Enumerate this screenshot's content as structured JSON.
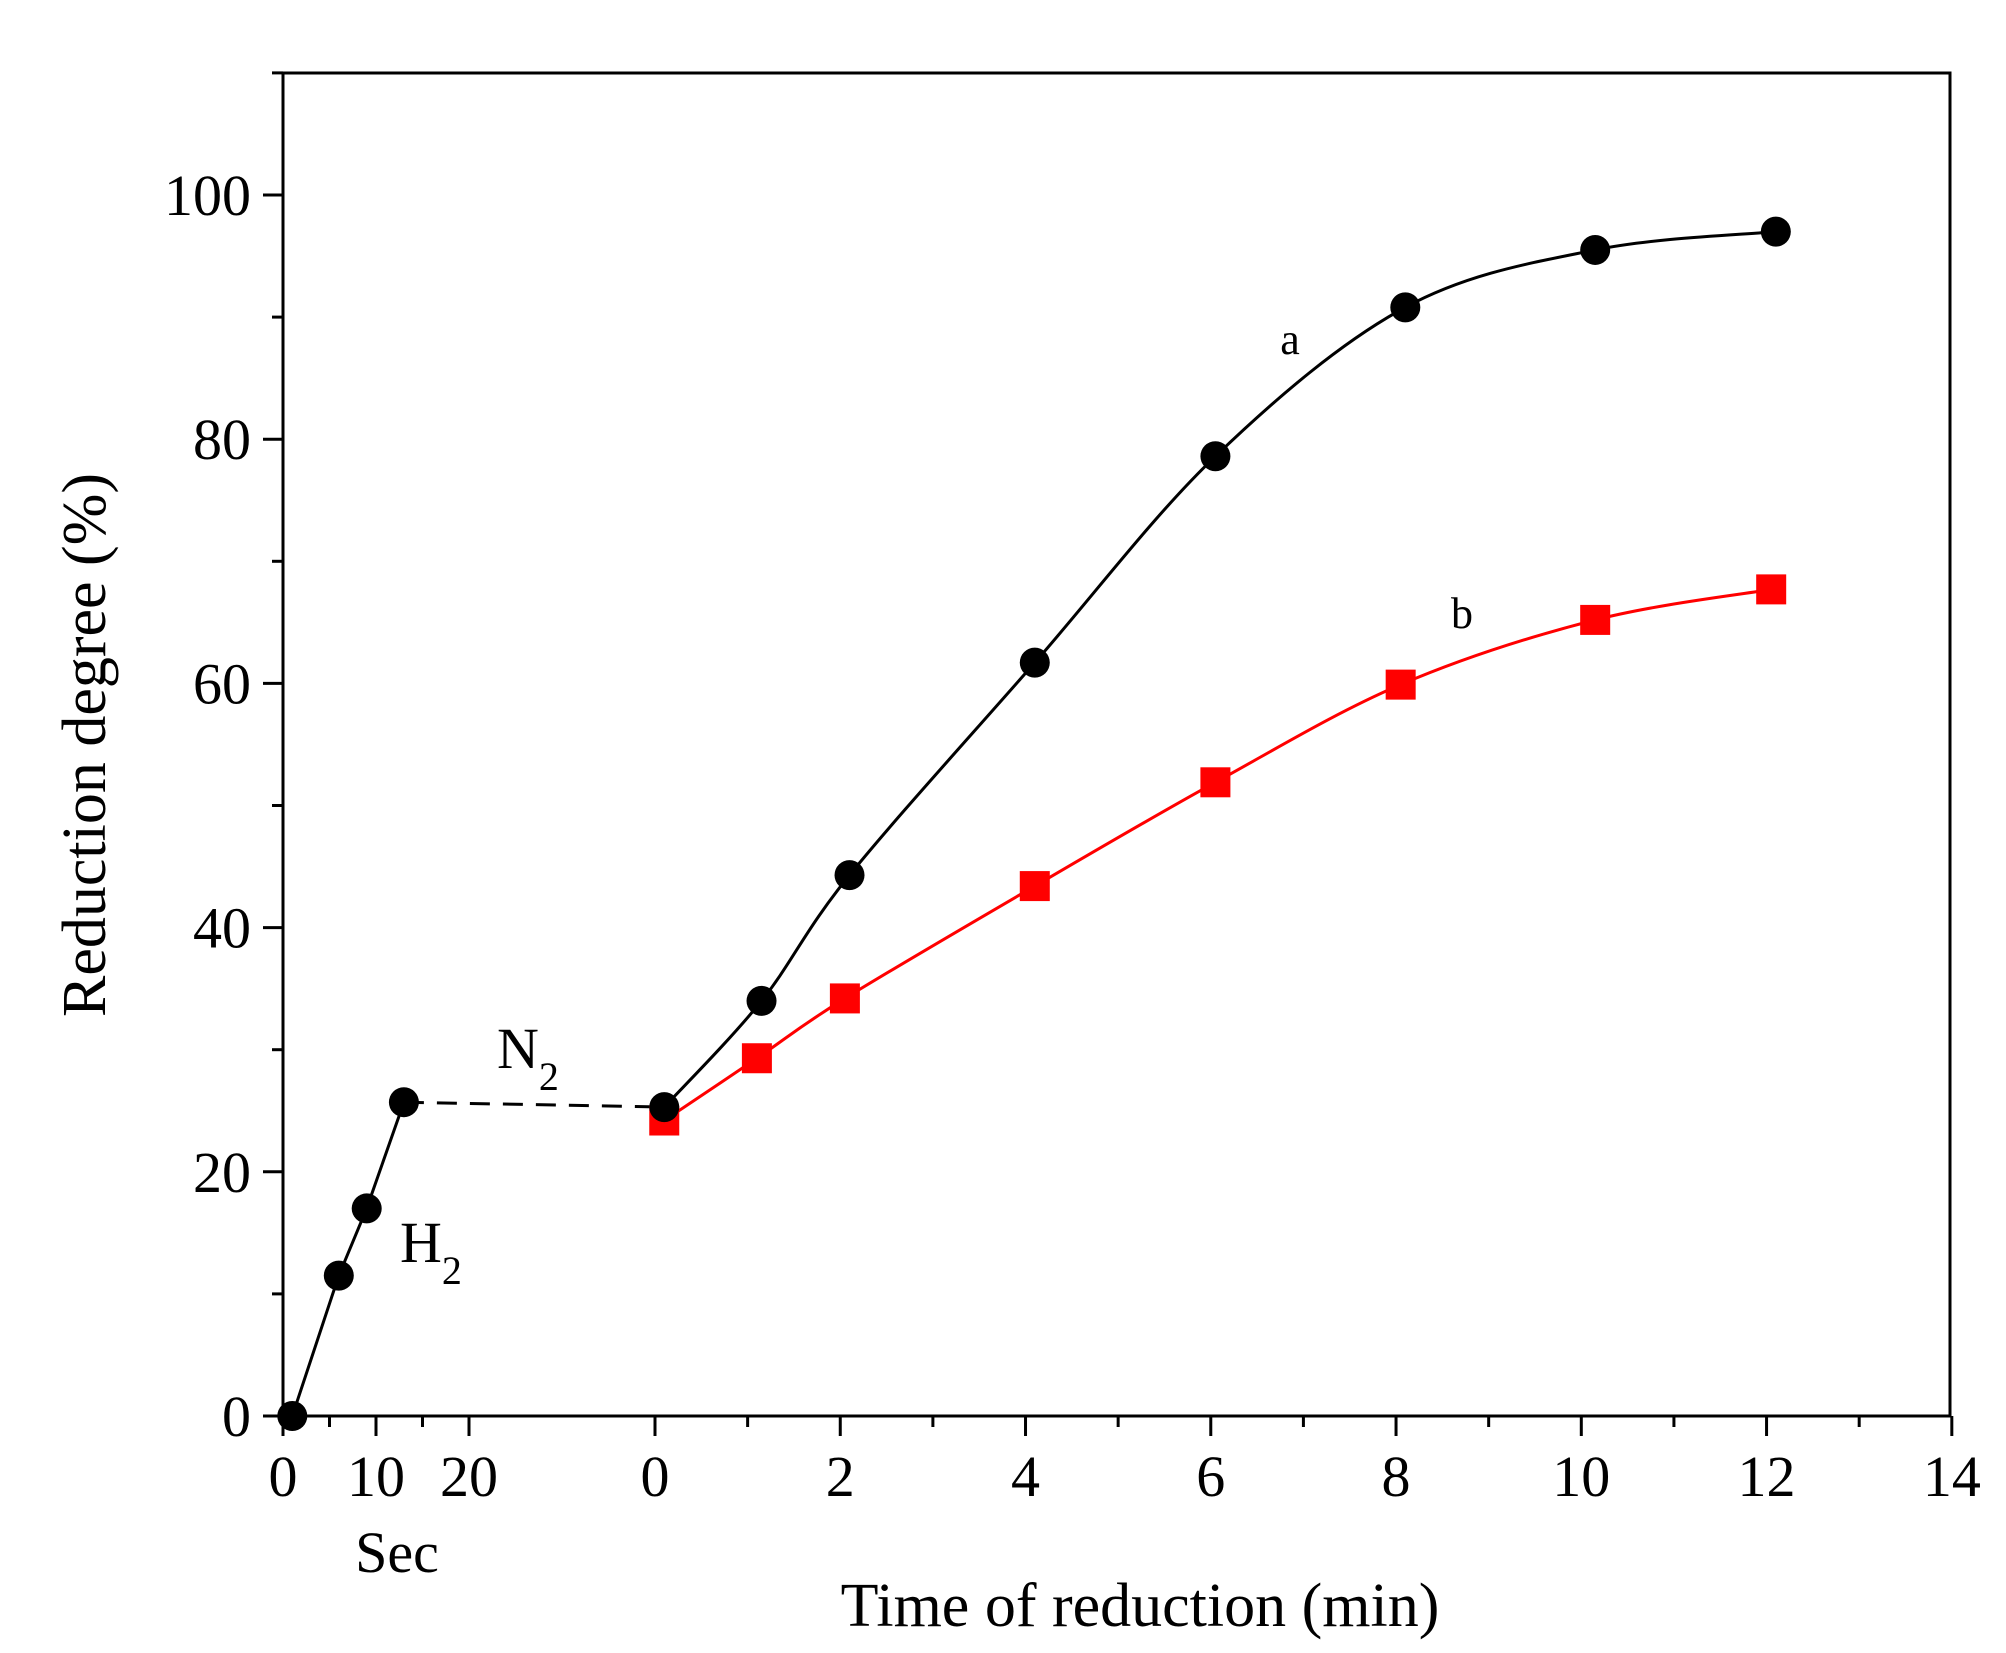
{
  "chart_data": {
    "type": "line",
    "title": "",
    "xlabel": "Time of reduction (min)",
    "ylabel": "Reduction degree (%)",
    "ylim": [
      0,
      110
    ],
    "yticks": [
      0,
      20,
      40,
      60,
      80,
      100
    ],
    "xlim": [
      0,
      14
    ],
    "xticks": [
      0,
      2,
      4,
      6,
      8,
      10,
      12,
      14
    ],
    "sec_axis": {
      "label": "Sec",
      "range": [
        0,
        20
      ],
      "ticks": [
        0,
        10,
        20
      ]
    },
    "series": [
      {
        "name": "H2 stage",
        "label": "H",
        "label_sub": "2",
        "axis": "sec",
        "color": "#000000",
        "marker": "circle",
        "line_style": "solid",
        "x": [
          1,
          6,
          9,
          13
        ],
        "y": [
          0,
          11.5,
          17,
          25.7
        ]
      },
      {
        "name": "N2 stage",
        "label": "N",
        "label_sub": "2",
        "axis": "connector",
        "color": "#000000",
        "marker": "none",
        "line_style": "dashed",
        "y": [
          25.7,
          25.3
        ]
      },
      {
        "name": "a",
        "label": "a",
        "axis": "min",
        "color": "#000000",
        "marker": "circle",
        "line_style": "solid",
        "x": [
          0.1,
          1.15,
          2.1,
          4.1,
          6.05,
          8.1,
          10.15,
          12.1
        ],
        "y": [
          25.3,
          34,
          44.3,
          61.7,
          78.6,
          90.8,
          95.5,
          97
        ]
      },
      {
        "name": "b",
        "label": "b",
        "axis": "min",
        "color": "#ff0000",
        "marker": "square",
        "line_style": "solid",
        "x": [
          0.1,
          1.1,
          2.05,
          4.1,
          6.05,
          8.05,
          10.15,
          12.05
        ],
        "y": [
          24.2,
          29.3,
          34.2,
          43.4,
          51.9,
          59.9,
          65.2,
          67.7
        ]
      }
    ]
  }
}
